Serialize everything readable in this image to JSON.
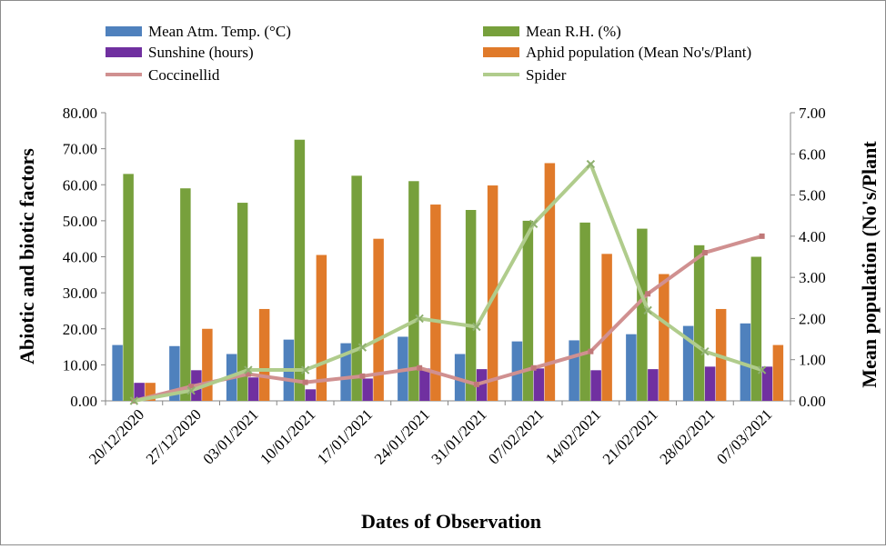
{
  "chart_data": {
    "type": "bar",
    "categories": [
      "20/12/2020",
      "27/12/2020",
      "03/01/2021",
      "10/01/2021",
      "17/01/2021",
      "24/01/2021",
      "31/01/2021",
      "07/02/2021",
      "14/02/2021",
      "21/02/2021",
      "28/02/2021",
      "07/03/2021"
    ],
    "xlabel": "Dates of Observation",
    "ylabel": "Abiotic and biotic factors",
    "y2label": "Mean population (No's/Plant",
    "ylim": [
      0,
      80
    ],
    "y2lim": [
      0,
      7
    ],
    "yticks": [
      "0.00",
      "10.00",
      "20.00",
      "30.00",
      "40.00",
      "50.00",
      "60.00",
      "70.00",
      "80.00"
    ],
    "y2ticks": [
      "0.00",
      "1.00",
      "2.00",
      "3.00",
      "4.00",
      "5.00",
      "6.00",
      "7.00"
    ],
    "legend_position": "top",
    "series": [
      {
        "name": "Mean Atm. Temp. (°C)",
        "kind": "bar",
        "axis": "left",
        "color": "#4f81bd",
        "values": [
          15.5,
          15.2,
          13.0,
          17.0,
          16.0,
          17.8,
          13.0,
          16.5,
          16.8,
          18.5,
          20.8,
          21.5
        ]
      },
      {
        "name": "Mean R.H. (%)",
        "kind": "bar",
        "axis": "left",
        "color": "#77a03c",
        "values": [
          63.0,
          59.0,
          55.0,
          72.5,
          62.5,
          61.0,
          53.0,
          50.0,
          49.5,
          47.8,
          43.2,
          40.0
        ]
      },
      {
        "name": "Sunshine (hours)",
        "kind": "bar",
        "axis": "left",
        "color": "#7030a0",
        "values": [
          5.0,
          8.5,
          6.5,
          3.2,
          6.2,
          9.0,
          8.8,
          9.0,
          8.5,
          8.8,
          9.5,
          9.5
        ]
      },
      {
        "name": "Aphid population  (Mean No's/Plant)",
        "kind": "bar",
        "axis": "left",
        "color": "#e07a2a",
        "values": [
          5.0,
          20.0,
          25.5,
          40.5,
          45.0,
          54.5,
          59.8,
          66.0,
          40.8,
          35.2,
          25.5,
          15.5
        ]
      },
      {
        "name": "Coccinellid",
        "kind": "line",
        "axis": "right",
        "color": "#d09090",
        "values": [
          0.0,
          0.35,
          0.65,
          0.45,
          0.6,
          0.8,
          0.4,
          0.8,
          1.2,
          2.6,
          3.6,
          4.0
        ]
      },
      {
        "name": "Spider",
        "kind": "line",
        "axis": "right",
        "color": "#b0cc8c",
        "values": [
          0.0,
          0.25,
          0.75,
          0.75,
          1.3,
          2.0,
          1.8,
          4.3,
          5.75,
          2.2,
          1.2,
          0.75
        ]
      }
    ]
  }
}
